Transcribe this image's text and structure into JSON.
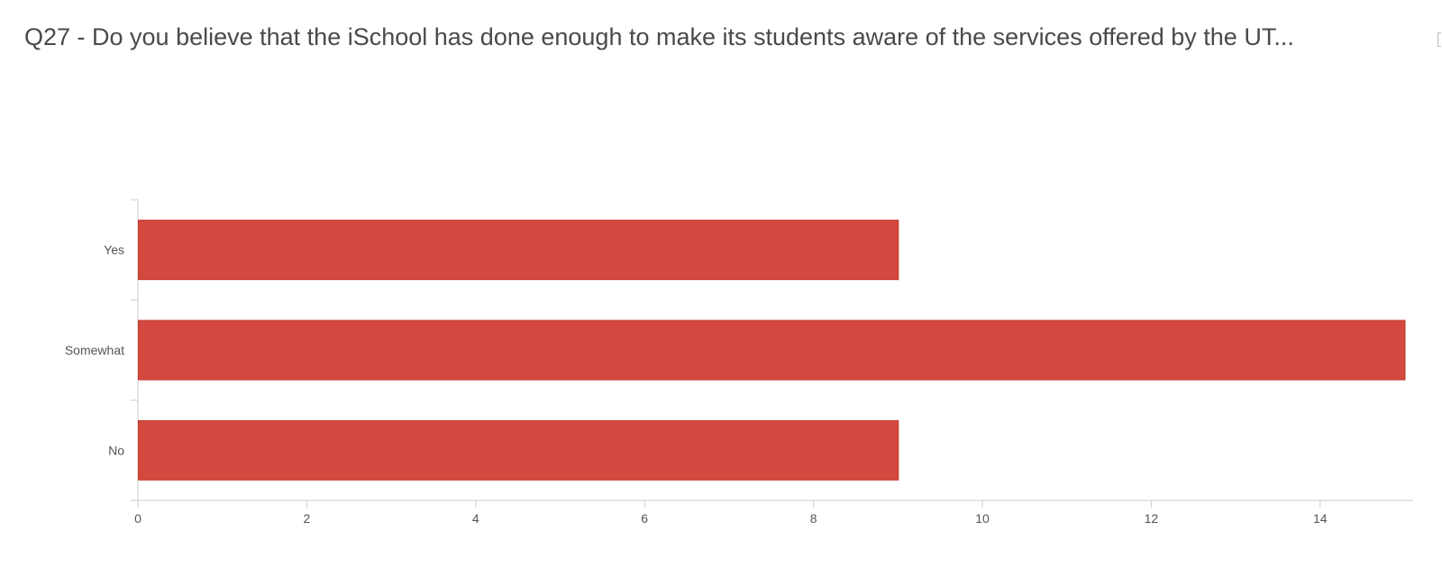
{
  "chart_data": {
    "type": "bar",
    "orientation": "horizontal",
    "title": "Q27 - Do you believe that the iSchool has done enough to make its students aware of the services offered by the UT...",
    "categories": [
      "Yes",
      "Somewhat",
      "No"
    ],
    "values": [
      9,
      15,
      9
    ],
    "xlim": [
      0,
      15
    ],
    "xticks": [
      0,
      2,
      4,
      6,
      8,
      10,
      12,
      14
    ],
    "bar_color": "#d3493f",
    "bar_edge_color": "#c0392b",
    "axis_color": "#cccccc",
    "grid": false,
    "legend": false
  }
}
